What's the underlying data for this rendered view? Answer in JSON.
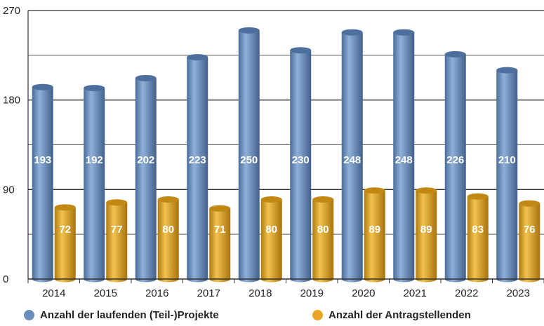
{
  "chart_data": {
    "type": "bar",
    "style": "cylinder",
    "categories": [
      "2014",
      "2015",
      "2016",
      "2017",
      "2018",
      "2019",
      "2020",
      "2021",
      "2022",
      "2023"
    ],
    "series": [
      {
        "name": "Anzahl der laufenden (Teil-)Projekte",
        "values": [
          193,
          192,
          202,
          223,
          250,
          230,
          248,
          248,
          226,
          210
        ],
        "color": "#6b8fbd"
      },
      {
        "name": "Anzahl der Antragstellenden",
        "values": [
          72,
          77,
          80,
          71,
          80,
          80,
          89,
          89,
          83,
          76
        ],
        "color": "#e8a525"
      }
    ],
    "yticks": [
      0,
      90,
      180,
      270
    ],
    "ylim": [
      0,
      270
    ],
    "grid": true,
    "legend_position": "bottom",
    "title": "",
    "xlabel": "",
    "ylabel": ""
  }
}
